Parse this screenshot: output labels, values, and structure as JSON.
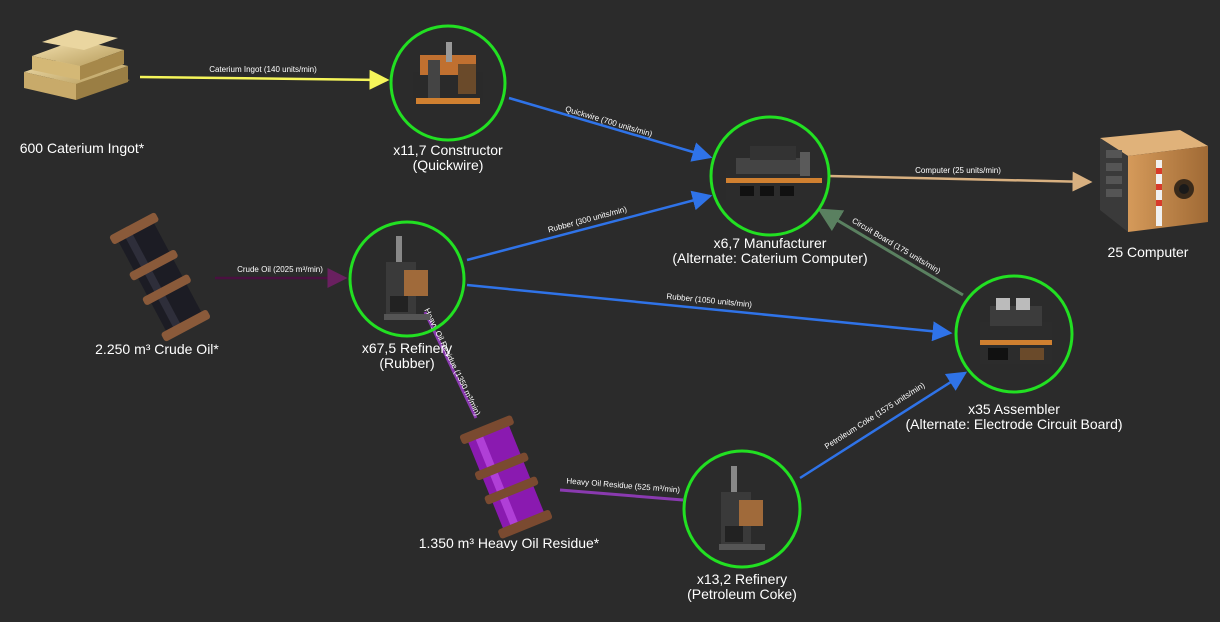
{
  "nodes": {
    "caterium_ingot": {
      "label": "600 Caterium Ingot*"
    },
    "crude_oil": {
      "label": "2.250 m³ Crude Oil*"
    },
    "heavy_oil": {
      "label": "1.350 m³ Heavy Oil Residue*"
    },
    "constructor": {
      "line1": "x11,7 Constructor",
      "line2": "(Quickwire)"
    },
    "refinery_rubber": {
      "line1": "x67,5 Refinery",
      "line2": "(Rubber)"
    },
    "manufacturer": {
      "line1": "x6,7 Manufacturer",
      "line2": "(Alternate: Caterium Computer)"
    },
    "assembler": {
      "line1": "x35 Assembler",
      "line2": "(Alternate: Electrode Circuit Board)"
    },
    "refinery_coke": {
      "line1": "x13,2 Refinery",
      "line2": "(Petroleum Coke)"
    },
    "computer": {
      "label": "25 Computer"
    }
  },
  "edges": {
    "caterium": "Caterium Ingot (140 units/min)",
    "quickwire": "Quickwire (700 units/min)",
    "computer": "Computer (25 units/min)",
    "rubber300": "Rubber (300 units/min)",
    "crude": "Crude Oil (2025 m³/min)",
    "rubber1050": "Rubber (1050 units/min)",
    "circuit": "Circuit Board (175 units/min)",
    "heavy1350": "Heavy Oil Residue (1350 m³/min)",
    "heavy525": "Heavy Oil Residue (525 m³/min)",
    "coke": "Petroleum Coke (1575 units/min)"
  },
  "colors": {
    "background": "#2b2b2b",
    "ring": "#22e022",
    "caterium_edge": "#f5f55a",
    "product_edge": "#2f73e8",
    "computer_edge": "#d8b080",
    "crude_edge": "#4a1040",
    "circuit_edge": "#5a8060",
    "heavy_edge": "#8a3ab0"
  }
}
